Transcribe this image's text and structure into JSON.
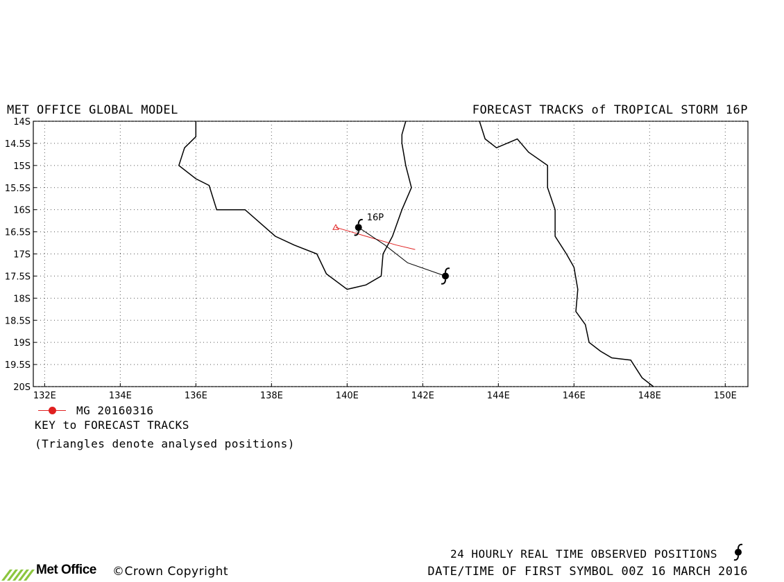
{
  "header": {
    "model": "MET OFFICE GLOBAL MODEL",
    "title": "FORECAST TRACKS of TROPICAL STORM 16P"
  },
  "storm_label": "16P",
  "map": {
    "lon_range": [
      131.7,
      150.6
    ],
    "lat_range": [
      -20,
      -14
    ],
    "x_ticks": [
      "132E",
      "134E",
      "136E",
      "138E",
      "140E",
      "142E",
      "144E",
      "146E",
      "148E",
      "150E"
    ],
    "y_ticks": [
      "14S",
      "14.5S",
      "15S",
      "15.5S",
      "16S",
      "16.5S",
      "17S",
      "17.5S",
      "18S",
      "18.5S",
      "19S",
      "19.5S",
      "20S"
    ],
    "grid": "dotted",
    "colors": {
      "coast": "#000000",
      "forecast": "#e02020",
      "observed": "#000000",
      "grid": "#555555"
    },
    "coastline_west": [
      [
        136.0,
        -14.0
      ],
      [
        136.0,
        -14.35
      ],
      [
        135.7,
        -14.6
      ],
      [
        135.55,
        -15.0
      ],
      [
        136.0,
        -15.3
      ],
      [
        136.35,
        -15.45
      ],
      [
        136.55,
        -16.0
      ],
      [
        137.3,
        -16.0
      ],
      [
        137.9,
        -16.45
      ],
      [
        138.1,
        -16.6
      ],
      [
        138.6,
        -16.8
      ],
      [
        139.2,
        -17.0
      ],
      [
        139.45,
        -17.45
      ],
      [
        140.0,
        -17.8
      ],
      [
        140.5,
        -17.7
      ],
      [
        140.9,
        -17.5
      ],
      [
        140.95,
        -17.0
      ],
      [
        141.2,
        -16.6
      ],
      [
        141.45,
        -16.0
      ],
      [
        141.7,
        -15.5
      ],
      [
        141.55,
        -15.0
      ],
      [
        141.45,
        -14.5
      ],
      [
        141.45,
        -14.3
      ],
      [
        141.55,
        -14.0
      ]
    ],
    "coastline_east": [
      [
        143.5,
        -14.0
      ],
      [
        143.65,
        -14.4
      ],
      [
        143.95,
        -14.6
      ],
      [
        144.5,
        -14.4
      ],
      [
        144.8,
        -14.7
      ],
      [
        145.3,
        -15.0
      ],
      [
        145.3,
        -15.5
      ],
      [
        145.5,
        -16.0
      ],
      [
        145.5,
        -16.6
      ],
      [
        145.8,
        -17.0
      ],
      [
        146.0,
        -17.3
      ],
      [
        146.1,
        -17.8
      ],
      [
        146.05,
        -18.3
      ],
      [
        146.3,
        -18.6
      ],
      [
        146.4,
        -19.0
      ],
      [
        146.7,
        -19.2
      ],
      [
        147.0,
        -19.35
      ],
      [
        147.5,
        -19.4
      ],
      [
        147.8,
        -19.8
      ],
      [
        148.1,
        -20.0
      ]
    ],
    "observed_track": {
      "label": "24 HOURLY REAL TIME OBSERVED POSITIONS",
      "points": [
        [
          140.3,
          -16.4
        ],
        [
          141.0,
          -16.8
        ],
        [
          141.6,
          -17.2
        ],
        [
          142.6,
          -17.5
        ]
      ]
    },
    "forecast_tracks": [
      {
        "name": "MG 20160316",
        "color": "#e02020",
        "points": [
          [
            139.7,
            -16.4
          ],
          [
            140.5,
            -16.6
          ],
          [
            141.3,
            -16.8
          ],
          [
            141.8,
            -16.9
          ]
        ]
      }
    ]
  },
  "key": {
    "entry_label": "MG 20160316",
    "title": "KEY to FORECAST TRACKS",
    "note": "(Triangles denote analysed positions)"
  },
  "footer": {
    "observed_positions": "24 HOURLY REAL TIME OBSERVED POSITIONS",
    "first_symbol": "DATE/TIME OF FIRST SYMBOL 00Z 16 MARCH 2016",
    "logo": "Met Office",
    "copyright": "Crown Copyright"
  }
}
